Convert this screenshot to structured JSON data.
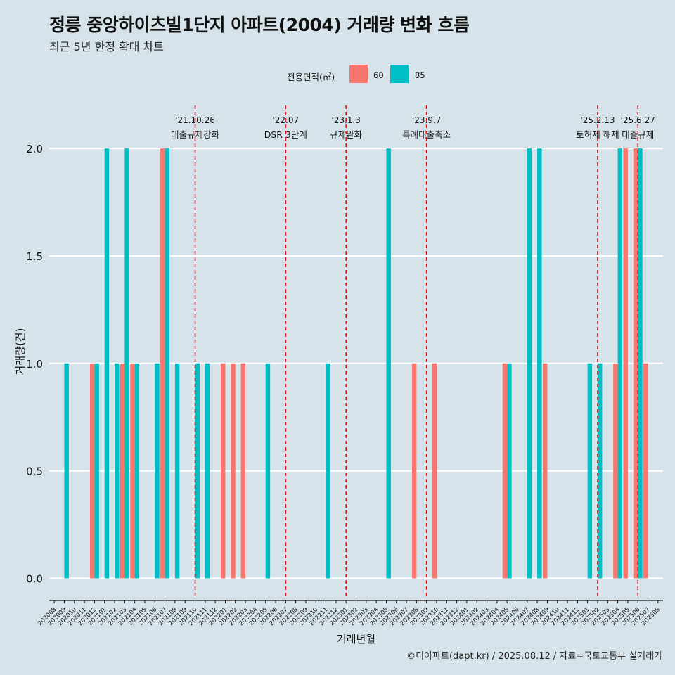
{
  "header": {
    "title": "정릉 중앙하이츠빌1단지 아파트(2004) 거래량 변화 흐름",
    "subtitle": "최근 5년 한정 확대 차트"
  },
  "legend": {
    "title": "전용면적(㎡)",
    "items": [
      {
        "label": "60",
        "color": "#F8766D"
      },
      {
        "label": "85",
        "color": "#00BFC4"
      }
    ]
  },
  "footer": "©디아파트(dapt.kr) / 2025.08.12 / 자료=국토교통부 실거래가",
  "chart_data": {
    "type": "bar",
    "xlabel": "거래년월",
    "ylabel": "거래량(건)",
    "ylim": [
      -0.09,
      2.2
    ],
    "yticks": [
      "0.0",
      "0.5",
      "1.0",
      "1.5",
      "2.0"
    ],
    "months": [
      "202008",
      "202009",
      "202010",
      "202011",
      "202012",
      "202101",
      "202102",
      "202103",
      "202104",
      "202105",
      "202106",
      "202107",
      "202108",
      "202109",
      "202110",
      "202111",
      "202112",
      "202201",
      "202202",
      "202203",
      "202204",
      "202205",
      "202206",
      "202207",
      "202208",
      "202209",
      "202210",
      "202211",
      "202212",
      "202301",
      "202302",
      "202303",
      "202304",
      "202305",
      "202306",
      "202307",
      "202308",
      "202309",
      "202310",
      "202311",
      "202312",
      "202401",
      "202402",
      "202403",
      "202404",
      "202405",
      "202406",
      "202407",
      "202408",
      "202409",
      "202410",
      "202411",
      "202412",
      "202501",
      "202502",
      "202503",
      "202504",
      "202505",
      "202506",
      "202507",
      "202508"
    ],
    "series": [
      {
        "name": "60",
        "color": "#F8766D",
        "values": [
          0,
          0,
          0,
          0,
          1,
          0,
          0,
          1,
          1,
          0,
          0,
          2,
          0,
          0,
          0,
          0,
          0,
          1,
          1,
          1,
          0,
          0,
          0,
          0,
          0,
          0,
          0,
          0,
          0,
          0,
          0,
          0,
          0,
          0,
          0,
          0,
          1,
          0,
          1,
          0,
          0,
          0,
          0,
          0,
          0,
          1,
          0,
          0,
          0,
          1,
          0,
          0,
          0,
          0,
          0,
          0,
          1,
          2,
          2,
          1,
          0
        ]
      },
      {
        "name": "85",
        "color": "#00BFC4",
        "values": [
          0,
          1,
          0,
          0,
          1,
          2,
          1,
          2,
          1,
          0,
          1,
          2,
          1,
          0,
          1,
          1,
          0,
          0,
          0,
          0,
          0,
          1,
          0,
          0,
          0,
          0,
          0,
          1,
          0,
          0,
          0,
          0,
          0,
          2,
          0,
          0,
          0,
          0,
          0,
          0,
          0,
          0,
          0,
          0,
          0,
          1,
          0,
          2,
          2,
          0,
          0,
          0,
          0,
          1,
          1,
          0,
          2,
          0,
          2,
          0,
          0
        ]
      }
    ],
    "events": [
      {
        "month": "202110",
        "date": "'21.10.26",
        "label": "대출규제강화"
      },
      {
        "month": "202207",
        "date": "'22.07",
        "label": "DSR 3단계"
      },
      {
        "month": "202301",
        "date": "'23.1.3",
        "label": "규제완화"
      },
      {
        "month": "202309",
        "date": "'23.9.7",
        "label": "특례대출축소"
      },
      {
        "month": "202502",
        "date": "'25.2.13",
        "label": "토허제 해제"
      },
      {
        "month": "202506",
        "date": "'25.6.27",
        "label": "대출규제"
      }
    ]
  }
}
